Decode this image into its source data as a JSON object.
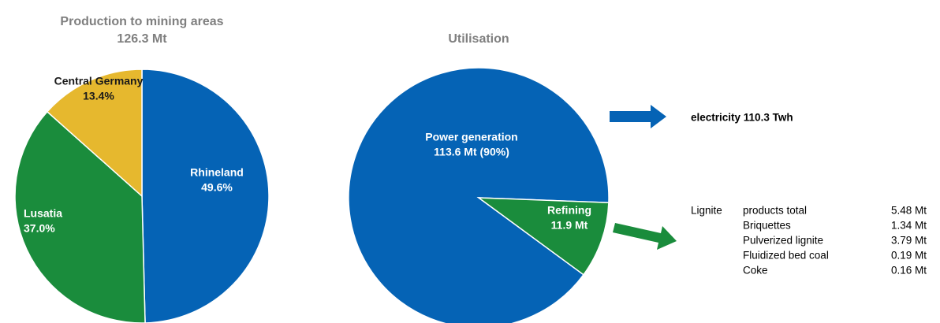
{
  "chart_data": [
    {
      "type": "pie",
      "title": "Production to mining areas",
      "subtitle": "126.3 Mt",
      "categories": [
        "Rhineland",
        "Lusatia",
        "Central Germany"
      ],
      "values": [
        49.6,
        37.0,
        13.4
      ],
      "value_labels": [
        "49.6%",
        "37.0%",
        "13.4%"
      ],
      "colors": [
        "#0563b5",
        "#1a8c3c",
        "#e6b82e"
      ]
    },
    {
      "type": "pie",
      "title": "Utilisation",
      "categories": [
        "Power generation",
        "Refining"
      ],
      "values": [
        113.6,
        11.9
      ],
      "value_labels": [
        "113.6 Mt (90%)",
        "11.9 Mt"
      ],
      "colors": [
        "#0563b5",
        "#1a8c3c"
      ]
    }
  ],
  "annotation": "electricity 110.3 Twh",
  "products": {
    "label": "Lignite",
    "rows": [
      [
        "products total",
        "5.48 Mt"
      ],
      [
        "Briquettes",
        "1.34 Mt"
      ],
      [
        "Pulverized lignite",
        "3.79 Mt"
      ],
      [
        "Fluidized bed coal",
        "0.19 Mt"
      ],
      [
        "Coke",
        "0.16 Mt"
      ]
    ]
  }
}
